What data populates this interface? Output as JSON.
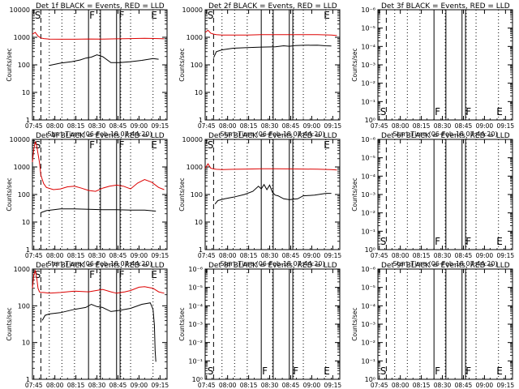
{
  "chart_data": [
    {
      "type": "line",
      "title": "Det 1f BLACK = Events, RED = LLD",
      "xlabel": "Start Time (06-Feb-18 07:44:20)",
      "ylabel": "Counts/sec",
      "yscale": "log",
      "ylim": [
        1,
        10000
      ],
      "yticks": [
        "1",
        "10",
        "100",
        "1000",
        "10000"
      ],
      "xlim": [
        0,
        96
      ],
      "xticks": [
        {
          "t": 1,
          "label": "07:45"
        },
        {
          "t": 16,
          "label": "08:00"
        },
        {
          "t": 31,
          "label": "08:15"
        },
        {
          "t": 46,
          "label": "08:30"
        },
        {
          "t": 61,
          "label": "08:45"
        },
        {
          "t": 76,
          "label": "09:00"
        },
        {
          "t": 91,
          "label": "09:15"
        }
      ],
      "dashed": [
        6
      ],
      "dotted": [
        12,
        21,
        30,
        48,
        63,
        70,
        86
      ],
      "solid": [
        40,
        48.5,
        60,
        62.5
      ],
      "markers": [
        {
          "t": 1,
          "label": "S"
        },
        {
          "t": 40,
          "label": "F"
        },
        {
          "t": 61,
          "label": "F"
        },
        {
          "t": 84,
          "label": "E"
        }
      ],
      "series": [
        {
          "color": "#dd0000",
          "x": [
            0,
            2,
            4,
            6,
            8,
            12,
            20,
            30,
            40,
            50,
            60,
            70,
            80,
            90,
            94
          ],
          "y": [
            1300,
            1500,
            1100,
            950,
            900,
            860,
            850,
            850,
            870,
            860,
            880,
            900,
            920,
            900,
            880
          ]
        },
        {
          "color": "#000000",
          "x": [
            12,
            20,
            28,
            34,
            38,
            42,
            46,
            50,
            56,
            62,
            70,
            78,
            86,
            90
          ],
          "y": [
            95,
            115,
            130,
            150,
            175,
            190,
            230,
            200,
            120,
            120,
            130,
            145,
            170,
            160
          ]
        }
      ]
    },
    {
      "type": "line",
      "title": "Det 2f BLACK = Events, RED = LLD",
      "xlabel": "Start Time (06-Feb-18 07:44:20)",
      "ylabel": "Counts/sec",
      "yscale": "log",
      "ylim": [
        1,
        10000
      ],
      "yticks": [
        "1",
        "10",
        "100",
        "1000",
        "10000"
      ],
      "xlim": [
        0,
        96
      ],
      "xticks": [
        {
          "t": 1,
          "label": "07:45"
        },
        {
          "t": 16,
          "label": "08:00"
        },
        {
          "t": 31,
          "label": "08:15"
        },
        {
          "t": 46,
          "label": "08:30"
        },
        {
          "t": 61,
          "label": "08:45"
        },
        {
          "t": 76,
          "label": "09:00"
        },
        {
          "t": 91,
          "label": "09:15"
        }
      ],
      "dashed": [
        6
      ],
      "dotted": [
        12,
        21,
        30,
        48,
        63,
        70,
        86
      ],
      "solid": [
        40,
        48.5,
        60,
        62.5
      ],
      "markers": [
        {
          "t": 1,
          "label": "S"
        },
        {
          "t": 84,
          "label": "E"
        }
      ],
      "series": [
        {
          "color": "#dd0000",
          "x": [
            0,
            2,
            4,
            6,
            8,
            12,
            20,
            30,
            40,
            50,
            60,
            70,
            80,
            90,
            94
          ],
          "y": [
            1500,
            1800,
            1400,
            1300,
            1250,
            1200,
            1200,
            1200,
            1250,
            1250,
            1250,
            1250,
            1250,
            1200,
            1150
          ]
        },
        {
          "color": "#000000",
          "x": [
            6,
            8,
            12,
            20,
            30,
            40,
            50,
            56,
            60,
            64,
            70,
            80,
            86,
            90
          ],
          "y": [
            180,
            300,
            350,
            400,
            420,
            440,
            450,
            490,
            470,
            500,
            510,
            520,
            490,
            480
          ]
        }
      ]
    },
    {
      "type": "line",
      "title": "Det 3f BLACK = Events, RED = LLD",
      "xlabel": "Start Time (06-Feb-18 07:44:20)",
      "ylabel": "Counts/sec",
      "yscale": "log",
      "ylim": [
        1,
        1e-06
      ],
      "yticks": [
        "10⁰",
        "10⁻¹",
        "10⁻²",
        "10⁻³",
        "10⁻⁴",
        "10⁻⁵",
        "10⁻⁶"
      ],
      "xlim": [
        0,
        96
      ],
      "xticks": [
        {
          "t": 1,
          "label": "07:45"
        },
        {
          "t": 16,
          "label": "08:00"
        },
        {
          "t": 31,
          "label": "08:15"
        },
        {
          "t": 46,
          "label": "08:30"
        },
        {
          "t": 61,
          "label": "08:45"
        },
        {
          "t": 76,
          "label": "09:00"
        },
        {
          "t": 91,
          "label": "09:15"
        }
      ],
      "dashed": [
        6
      ],
      "dotted": [
        12,
        21,
        30,
        48,
        63,
        70,
        86
      ],
      "solid": [
        40,
        48.5,
        60,
        62.5
      ],
      "markers": [
        {
          "t": 1,
          "label": "S"
        },
        {
          "t": 40,
          "label": "F"
        },
        {
          "t": 62,
          "label": "F"
        },
        {
          "t": 84,
          "label": "E"
        }
      ],
      "series": []
    },
    {
      "type": "line",
      "title": "Det 4f BLACK = Events, RED = LLD",
      "xlabel": "Start Time (06-Feb-18 07:44:20)",
      "ylabel": "Counts/sec",
      "yscale": "log",
      "ylim": [
        1,
        10000
      ],
      "yticks": [
        "1",
        "10",
        "100",
        "1000",
        "10000"
      ],
      "xlim": [
        0,
        96
      ],
      "xticks": [
        {
          "t": 1,
          "label": "07:45"
        },
        {
          "t": 16,
          "label": "08:00"
        },
        {
          "t": 31,
          "label": "08:15"
        },
        {
          "t": 46,
          "label": "08:30"
        },
        {
          "t": 61,
          "label": "08:45"
        },
        {
          "t": 76,
          "label": "09:00"
        },
        {
          "t": 91,
          "label": "09:15"
        }
      ],
      "dashed": [
        6
      ],
      "dotted": [
        12,
        21,
        30,
        48,
        63,
        70,
        86
      ],
      "solid": [
        40,
        48.5,
        60,
        62.5
      ],
      "markers": [
        {
          "t": 1,
          "label": "S"
        },
        {
          "t": 40,
          "label": "F"
        },
        {
          "t": 61,
          "label": "F"
        },
        {
          "t": 84,
          "label": "E"
        }
      ],
      "series": [
        {
          "color": "#dd0000",
          "x": [
            0,
            1,
            2,
            3,
            4,
            5,
            6,
            8,
            10,
            15,
            20,
            25,
            30,
            35,
            40,
            45,
            50,
            55,
            60,
            65,
            70,
            75,
            80,
            85,
            90,
            94
          ],
          "y": [
            1500,
            4500,
            8000,
            6000,
            3000,
            1500,
            500,
            250,
            180,
            150,
            160,
            190,
            200,
            170,
            140,
            130,
            170,
            200,
            220,
            200,
            160,
            260,
            350,
            280,
            180,
            150
          ]
        },
        {
          "color": "#000000",
          "x": [
            6,
            10,
            20,
            30,
            40,
            50,
            60,
            70,
            80,
            88
          ],
          "y": [
            22,
            26,
            30,
            30,
            29,
            28,
            28,
            27,
            27,
            25
          ]
        }
      ]
    },
    {
      "type": "line",
      "title": "Det 5f BLACK = Events, RED = LLD",
      "xlabel": "Start Time (06-Feb-18 07:44:20)",
      "ylabel": "Counts/sec",
      "yscale": "log",
      "ylim": [
        1,
        10000
      ],
      "yticks": [
        "1",
        "10",
        "100",
        "1000",
        "10000"
      ],
      "xlim": [
        0,
        96
      ],
      "xticks": [
        {
          "t": 1,
          "label": "07:45"
        },
        {
          "t": 16,
          "label": "08:00"
        },
        {
          "t": 31,
          "label": "08:15"
        },
        {
          "t": 46,
          "label": "08:30"
        },
        {
          "t": 61,
          "label": "08:45"
        },
        {
          "t": 76,
          "label": "09:00"
        },
        {
          "t": 91,
          "label": "09:15"
        }
      ],
      "dashed": [
        6
      ],
      "dotted": [
        12,
        21,
        30,
        48,
        63,
        70,
        86
      ],
      "solid": [
        40,
        48.5,
        60,
        62.5
      ],
      "markers": [
        {
          "t": 1,
          "label": "S"
        },
        {
          "t": 84,
          "label": "E"
        }
      ],
      "series": [
        {
          "color": "#dd0000",
          "x": [
            0,
            2,
            4,
            6,
            8,
            12,
            20,
            30,
            40,
            50,
            60,
            70,
            80,
            90,
            94
          ],
          "y": [
            900,
            1300,
            900,
            850,
            820,
            800,
            820,
            840,
            860,
            860,
            850,
            840,
            830,
            800,
            780
          ]
        },
        {
          "color": "#000000",
          "x": [
            7,
            9,
            14,
            20,
            28,
            34,
            38,
            40,
            42,
            44,
            46,
            48,
            50,
            52,
            56,
            60,
            66,
            70,
            78,
            86,
            90
          ],
          "y": [
            45,
            60,
            70,
            80,
            100,
            130,
            200,
            160,
            230,
            150,
            220,
            120,
            95,
            90,
            70,
            65,
            70,
            90,
            95,
            110,
            110
          ]
        }
      ]
    },
    {
      "type": "line",
      "title": "Det 6f BLACK = Events, RED = LLD",
      "xlabel": "Start Time (06-Feb-18 07:44:20)",
      "ylabel": "Counts/sec",
      "yscale": "log",
      "ylim": [
        1,
        1e-06
      ],
      "yticks": [
        "10⁰",
        "10⁻¹",
        "10⁻²",
        "10⁻³",
        "10⁻⁴",
        "10⁻⁵",
        "10⁻⁶"
      ],
      "xlim": [
        0,
        96
      ],
      "xticks": [
        {
          "t": 1,
          "label": "07:45"
        },
        {
          "t": 16,
          "label": "08:00"
        },
        {
          "t": 31,
          "label": "08:15"
        },
        {
          "t": 46,
          "label": "08:30"
        },
        {
          "t": 61,
          "label": "08:45"
        },
        {
          "t": 76,
          "label": "09:00"
        },
        {
          "t": 91,
          "label": "09:15"
        }
      ],
      "dashed": [
        6
      ],
      "dotted": [
        12,
        21,
        30,
        48,
        63,
        70,
        86
      ],
      "solid": [
        40,
        48.5,
        60,
        62.5
      ],
      "markers": [
        {
          "t": 1,
          "label": "S"
        },
        {
          "t": 40,
          "label": "F"
        },
        {
          "t": 62,
          "label": "F"
        },
        {
          "t": 84,
          "label": "E"
        }
      ],
      "series": []
    },
    {
      "type": "line",
      "title": "Det 7f BLACK = Events, RED = LLD",
      "xlabel": "Start Time (06-Feb-18 07:44:20)",
      "ylabel": "Counts/sec",
      "yscale": "log",
      "ylim": [
        1,
        1000
      ],
      "yticks": [
        "1",
        "10",
        "100",
        "1000"
      ],
      "xlim": [
        0,
        96
      ],
      "xticks": [
        {
          "t": 1,
          "label": "07:45"
        },
        {
          "t": 16,
          "label": "08:00"
        },
        {
          "t": 31,
          "label": "08:15"
        },
        {
          "t": 46,
          "label": "08:30"
        },
        {
          "t": 61,
          "label": "08:45"
        },
        {
          "t": 76,
          "label": "09:00"
        },
        {
          "t": 91,
          "label": "09:15"
        }
      ],
      "dashed": [
        6
      ],
      "dotted": [
        12,
        21,
        30,
        48,
        63,
        70,
        86
      ],
      "solid": [
        40,
        48.5,
        60,
        62.5
      ],
      "markers": [
        {
          "t": 1,
          "label": "S"
        },
        {
          "t": 40,
          "label": "F"
        },
        {
          "t": 61,
          "label": "F"
        },
        {
          "t": 84,
          "label": "E"
        }
      ],
      "series": [
        {
          "color": "#dd0000",
          "x": [
            0,
            1,
            2,
            3,
            4,
            5,
            6,
            8,
            12,
            20,
            30,
            40,
            50,
            56,
            60,
            66,
            70,
            76,
            80,
            86,
            90,
            94
          ],
          "y": [
            300,
            700,
            900,
            600,
            300,
            240,
            230,
            230,
            220,
            230,
            250,
            240,
            280,
            240,
            220,
            240,
            260,
            320,
            330,
            300,
            240,
            220
          ]
        },
        {
          "color": "#000000",
          "x": [
            7,
            9,
            12,
            20,
            30,
            38,
            42,
            46,
            50,
            56,
            62,
            70,
            78,
            84,
            86,
            87,
            87.5,
            88
          ],
          "y": [
            40,
            55,
            60,
            65,
            80,
            90,
            110,
            95,
            90,
            70,
            75,
            85,
            110,
            120,
            80,
            30,
            6,
            3
          ]
        }
      ]
    },
    {
      "type": "line",
      "title": "Det 8f BLACK = Events, RED = LLD",
      "xlabel": "Start Time (06-Feb-18 07:44:20)",
      "ylabel": "Counts/sec",
      "yscale": "log",
      "ylim": [
        1,
        1e-06
      ],
      "yticks": [
        "10⁰",
        "10⁻¹",
        "10⁻²",
        "10⁻³",
        "10⁻⁴",
        "10⁻⁵",
        "10⁻⁶"
      ],
      "xlim": [
        0,
        96
      ],
      "xticks": [
        {
          "t": 1,
          "label": "07:45"
        },
        {
          "t": 16,
          "label": "08:00"
        },
        {
          "t": 31,
          "label": "08:15"
        },
        {
          "t": 46,
          "label": "08:30"
        },
        {
          "t": 61,
          "label": "08:45"
        },
        {
          "t": 76,
          "label": "09:00"
        },
        {
          "t": 91,
          "label": "09:15"
        }
      ],
      "dashed": [
        6
      ],
      "dotted": [
        12,
        21,
        30,
        48,
        63,
        70,
        86
      ],
      "solid": [
        40,
        48.5,
        60,
        62.5
      ],
      "markers": [
        {
          "t": 1,
          "label": "S"
        },
        {
          "t": 40,
          "label": "F"
        },
        {
          "t": 62,
          "label": "F"
        },
        {
          "t": 84,
          "label": "E"
        }
      ],
      "series": []
    },
    {
      "type": "line",
      "title": "Det 9f BLACK = Events, RED = LLD",
      "xlabel": "Start Time (06-Feb-18 07:44:20)",
      "ylabel": "Counts/sec",
      "yscale": "log",
      "ylim": [
        1,
        1e-06
      ],
      "yticks": [
        "10⁰",
        "10⁻¹",
        "10⁻²",
        "10⁻³",
        "10⁻⁴",
        "10⁻⁵",
        "10⁻⁶"
      ],
      "xlim": [
        0,
        96
      ],
      "xticks": [
        {
          "t": 1,
          "label": "07:45"
        },
        {
          "t": 16,
          "label": "08:00"
        },
        {
          "t": 31,
          "label": "08:15"
        },
        {
          "t": 46,
          "label": "08:30"
        },
        {
          "t": 61,
          "label": "08:45"
        },
        {
          "t": 76,
          "label": "09:00"
        },
        {
          "t": 91,
          "label": "09:15"
        }
      ],
      "dashed": [
        6
      ],
      "dotted": [
        12,
        21,
        30,
        48,
        63,
        70,
        86
      ],
      "solid": [
        40,
        48.5,
        60,
        62.5
      ],
      "markers": [
        {
          "t": 1,
          "label": "S"
        },
        {
          "t": 40,
          "label": "F"
        },
        {
          "t": 62,
          "label": "F"
        },
        {
          "t": 84,
          "label": "E"
        }
      ],
      "series": []
    }
  ]
}
